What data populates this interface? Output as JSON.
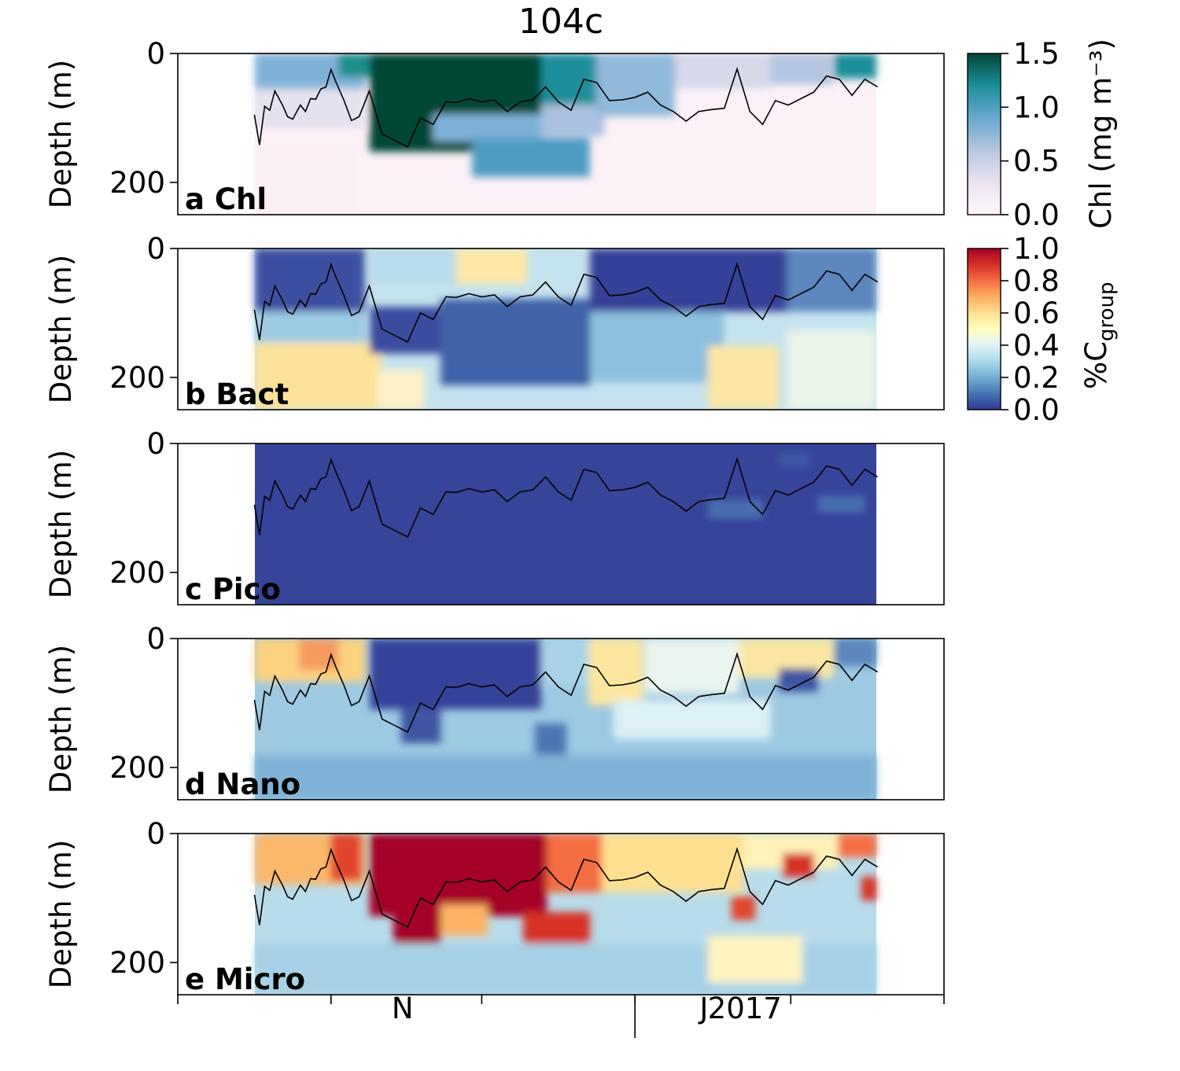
{
  "figure": {
    "title": "104c"
  },
  "chart_data": [
    {
      "type": "heatmap",
      "panel_label": "a Chl",
      "ylabel": "Depth (m)",
      "ylim": [
        250,
        0
      ],
      "yticks": [
        "0",
        "200"
      ],
      "colormap": "PuBuGn",
      "color_range": [
        0,
        1.5
      ],
      "dominant_value": "low except a high-Chl bloom from about day 92 to 185 in the upper 150 m and a patch near the surface at the end of the record",
      "mld_line": true
    },
    {
      "type": "heatmap",
      "panel_label": "b Bact",
      "ylabel": "Depth (m)",
      "ylim": [
        250,
        0
      ],
      "yticks": [
        "0",
        "200"
      ],
      "colormap": "RdYlBu_r",
      "color_range": [
        0,
        1
      ],
      "dominant_value": "low in the surface layer, 0.3 to 0.6 at depth",
      "mld_line": true
    },
    {
      "type": "heatmap",
      "panel_label": "c Pico",
      "ylabel": "Depth (m)",
      "ylim": [
        250,
        0
      ],
      "yticks": [
        "0",
        "200"
      ],
      "colormap": "RdYlBu_r",
      "color_range": [
        0,
        1
      ],
      "dominant_value": "near 0 everywhere",
      "mld_line": true
    },
    {
      "type": "heatmap",
      "panel_label": "d Nano",
      "ylabel": "Depth (m)",
      "ylim": [
        250,
        0
      ],
      "yticks": [
        "0",
        "200"
      ],
      "colormap": "RdYlBu_r",
      "color_range": [
        0,
        1
      ],
      "dominant_value": "0.1 to 0.4, near 0 above the mixed layer during the bloom",
      "mld_line": true
    },
    {
      "type": "heatmap",
      "panel_label": "e Micro",
      "ylabel": "Depth (m)",
      "ylim": [
        250,
        0
      ],
      "yticks": [
        "0",
        "200"
      ],
      "colormap": "RdYlBu_r",
      "color_range": [
        0,
        1
      ],
      "dominant_value": "near 1 during the bloom, 0.2 to 0.5 at depth",
      "mld_line": true
    }
  ],
  "time_axis": {
    "xlim": [
      0,
      300
    ],
    "data_range": [
      30,
      274
    ],
    "month_ticks": [
      0,
      60,
      119,
      179,
      240,
      300
    ],
    "labels": [
      {
        "text": "N",
        "day": 88
      },
      {
        "text": "J",
        "day": 206
      },
      {
        "text": "2017",
        "day": 222
      }
    ],
    "year_boundary_day": 179
  },
  "mixed_layer_depth": {
    "day": [
      30,
      32,
      34,
      36,
      38,
      41,
      43,
      45,
      48,
      50,
      52,
      54,
      56,
      58,
      60,
      62,
      65,
      68,
      71,
      75,
      80,
      85,
      90,
      95,
      100,
      105,
      109,
      114,
      119,
      124,
      129,
      134,
      139,
      144,
      149,
      154,
      159,
      164,
      169,
      174,
      179,
      184,
      189,
      194,
      199,
      204,
      209,
      214,
      219,
      224,
      229,
      234,
      239,
      244,
      249,
      254,
      259,
      264,
      269,
      274
    ],
    "depth": [
      95,
      142,
      82,
      88,
      58,
      80,
      98,
      102,
      80,
      90,
      70,
      71,
      55,
      52,
      25,
      45,
      72,
      104,
      98,
      58,
      125,
      135,
      145,
      100,
      110,
      75,
      76,
      70,
      75,
      72,
      90,
      75,
      72,
      52,
      75,
      88,
      40,
      45,
      73,
      72,
      68,
      60,
      80,
      90,
      105,
      90,
      87,
      85,
      24,
      90,
      110,
      73,
      80,
      70,
      60,
      35,
      40,
      65,
      40,
      52
    ]
  },
  "colorbars": [
    {
      "label": "Chl (mg m⁻³)",
      "ticks": [
        "1.5",
        "1.0",
        "0.5",
        "0.0"
      ],
      "range": [
        0,
        1.5
      ]
    },
    {
      "label_main": "%C",
      "label_sub": "group",
      "ticks": [
        "1.0",
        "0.8",
        "0.6",
        "0.4",
        "0.2",
        "0.0"
      ],
      "range": [
        0,
        1
      ]
    }
  ]
}
